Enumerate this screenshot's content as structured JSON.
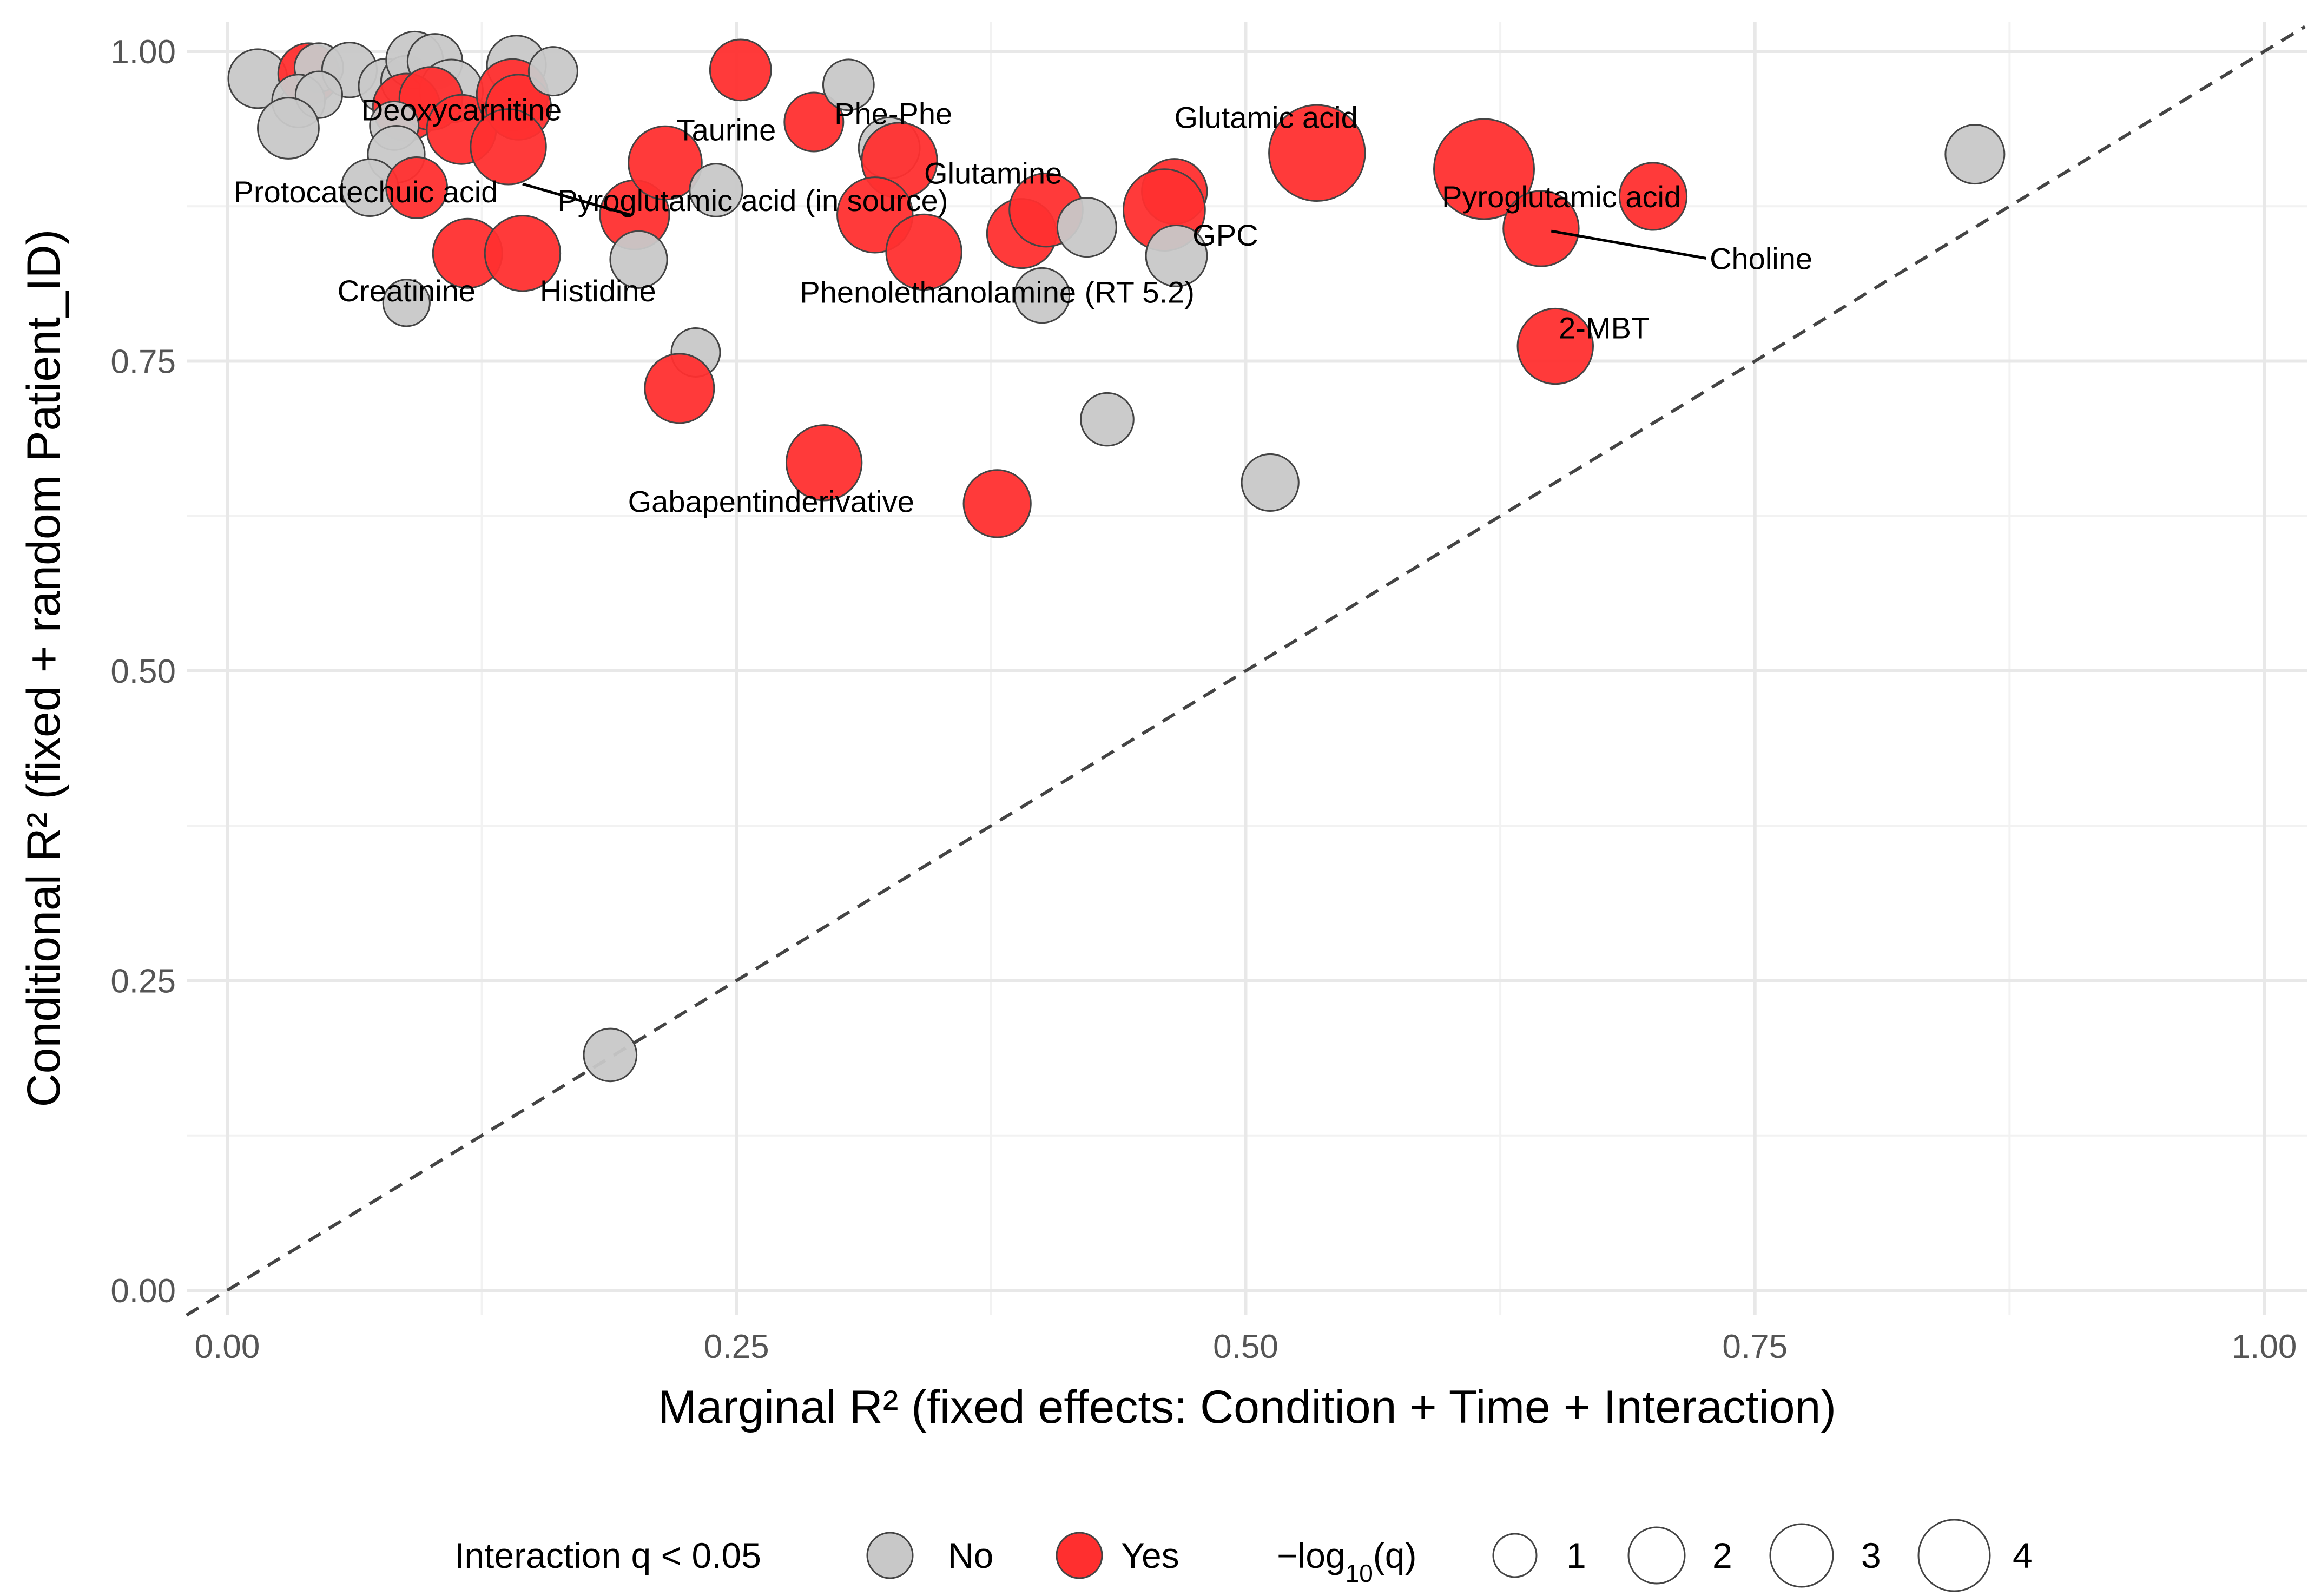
{
  "chart_data": {
    "type": "scatter",
    "title": "",
    "xlabel": "Marginal R² (fixed effects: Condition + Time + Interaction)",
    "ylabel": "Conditional R² (fixed + random Patient_ID)",
    "xlim": [
      -0.02,
      1.02
    ],
    "ylim": [
      -0.02,
      1.02
    ],
    "x_ticks": [
      0.0,
      0.25,
      0.5,
      0.75,
      1.0
    ],
    "x_tick_labels": [
      "0.00",
      "0.25",
      "0.50",
      "0.75",
      "1.00"
    ],
    "y_ticks": [
      0.0,
      0.25,
      0.5,
      0.75,
      1.0
    ],
    "y_tick_labels": [
      "0.00",
      "0.25",
      "0.50",
      "0.75",
      "1.00"
    ],
    "grid": true,
    "reference_line": "y = x (dashed)",
    "colors": {
      "No": "#c8c8c8",
      "Yes": "#ff2f2f",
      "edge": "#444444"
    },
    "legend": {
      "position": "bottom",
      "color_title": "Interaction q < 0.05",
      "color_entries": [
        "No",
        "Yes"
      ],
      "size_title_main": "−log",
      "size_title_sub": "10",
      "size_title_end": "(q)",
      "size_entries": [
        "1",
        "2",
        "3",
        "4"
      ]
    },
    "points": [
      {
        "x": 0.015,
        "y": 0.978,
        "sig": "No",
        "s": 1.5
      },
      {
        "x": 0.04,
        "y": 0.982,
        "sig": "Yes",
        "s": 1.6
      },
      {
        "x": 0.045,
        "y": 0.987,
        "sig": "No",
        "s": 1.0
      },
      {
        "x": 0.06,
        "y": 0.985,
        "sig": "No",
        "s": 1.3
      },
      {
        "x": 0.035,
        "y": 0.96,
        "sig": "No",
        "s": 1.2
      },
      {
        "x": 0.045,
        "y": 0.965,
        "sig": "No",
        "s": 0.9
      },
      {
        "x": 0.03,
        "y": 0.938,
        "sig": "No",
        "s": 1.6
      },
      {
        "x": 0.078,
        "y": 0.972,
        "sig": "No",
        "s": 1.3
      },
      {
        "x": 0.088,
        "y": 0.976,
        "sig": "No",
        "s": 1.1
      },
      {
        "x": 0.092,
        "y": 0.993,
        "sig": "No",
        "s": 1.4
      },
      {
        "x": 0.102,
        "y": 0.992,
        "sig": "No",
        "s": 1.3
      },
      {
        "x": 0.11,
        "y": 0.968,
        "sig": "No",
        "s": 1.7
      },
      {
        "x": 0.088,
        "y": 0.955,
        "sig": "Yes",
        "s": 1.9
      },
      {
        "x": 0.1,
        "y": 0.962,
        "sig": "Yes",
        "s": 1.7
      },
      {
        "x": 0.115,
        "y": 0.937,
        "sig": "Yes",
        "s": 2.0
      },
      {
        "x": 0.142,
        "y": 0.989,
        "sig": "No",
        "s": 1.5
      },
      {
        "x": 0.14,
        "y": 0.965,
        "sig": "Yes",
        "s": 2.1
      },
      {
        "x": 0.143,
        "y": 0.955,
        "sig": "Yes",
        "s": 1.8
      },
      {
        "x": 0.16,
        "y": 0.984,
        "sig": "No",
        "s": 1.0
      },
      {
        "x": 0.138,
        "y": 0.923,
        "sig": "Yes",
        "s": 2.3
      },
      {
        "x": 0.082,
        "y": 0.94,
        "sig": "No",
        "s": 1.0
      },
      {
        "x": 0.083,
        "y": 0.917,
        "sig": "No",
        "s": 1.4
      },
      {
        "x": 0.07,
        "y": 0.89,
        "sig": "No",
        "s": 1.4
      },
      {
        "x": 0.093,
        "y": 0.89,
        "sig": "Yes",
        "s": 1.6
      },
      {
        "x": 0.118,
        "y": 0.837,
        "sig": "Yes",
        "s": 2.0
      },
      {
        "x": 0.145,
        "y": 0.837,
        "sig": "Yes",
        "s": 2.3
      },
      {
        "x": 0.088,
        "y": 0.797,
        "sig": "No",
        "s": 0.9
      },
      {
        "x": 0.2,
        "y": 0.868,
        "sig": "Yes",
        "s": 2.0
      },
      {
        "x": 0.202,
        "y": 0.832,
        "sig": "No",
        "s": 1.4
      },
      {
        "x": 0.215,
        "y": 0.91,
        "sig": "Yes",
        "s": 2.2
      },
      {
        "x": 0.24,
        "y": 0.888,
        "sig": "No",
        "s": 1.2
      },
      {
        "x": 0.252,
        "y": 0.985,
        "sig": "Yes",
        "s": 1.6
      },
      {
        "x": 0.23,
        "y": 0.757,
        "sig": "No",
        "s": 1.0
      },
      {
        "x": 0.222,
        "y": 0.728,
        "sig": "Yes",
        "s": 2.0
      },
      {
        "x": 0.288,
        "y": 0.943,
        "sig": "Yes",
        "s": 1.5
      },
      {
        "x": 0.305,
        "y": 0.973,
        "sig": "No",
        "s": 1.1
      },
      {
        "x": 0.325,
        "y": 0.922,
        "sig": "No",
        "s": 1.6
      },
      {
        "x": 0.33,
        "y": 0.912,
        "sig": "Yes",
        "s": 2.3
      },
      {
        "x": 0.318,
        "y": 0.868,
        "sig": "Yes",
        "s": 2.3
      },
      {
        "x": 0.342,
        "y": 0.838,
        "sig": "Yes",
        "s": 2.3
      },
      {
        "x": 0.293,
        "y": 0.668,
        "sig": "Yes",
        "s": 2.3
      },
      {
        "x": 0.378,
        "y": 0.635,
        "sig": "Yes",
        "s": 1.9
      },
      {
        "x": 0.39,
        "y": 0.853,
        "sig": "Yes",
        "s": 2.0
      },
      {
        "x": 0.402,
        "y": 0.872,
        "sig": "Yes",
        "s": 2.2
      },
      {
        "x": 0.4,
        "y": 0.803,
        "sig": "No",
        "s": 1.3
      },
      {
        "x": 0.422,
        "y": 0.858,
        "sig": "No",
        "s": 1.5
      },
      {
        "x": 0.432,
        "y": 0.703,
        "sig": "No",
        "s": 1.2
      },
      {
        "x": 0.465,
        "y": 0.887,
        "sig": "Yes",
        "s": 1.8
      },
      {
        "x": 0.46,
        "y": 0.872,
        "sig": "Yes",
        "s": 2.6
      },
      {
        "x": 0.466,
        "y": 0.835,
        "sig": "No",
        "s": 1.6
      },
      {
        "x": 0.512,
        "y": 0.652,
        "sig": "No",
        "s": 1.4
      },
      {
        "x": 0.535,
        "y": 0.918,
        "sig": "Yes",
        "s": 3.3
      },
      {
        "x": 0.617,
        "y": 0.905,
        "sig": "Yes",
        "s": 3.5
      },
      {
        "x": 0.645,
        "y": 0.857,
        "sig": "Yes",
        "s": 2.3
      },
      {
        "x": 0.652,
        "y": 0.762,
        "sig": "Yes",
        "s": 2.3
      },
      {
        "x": 0.7,
        "y": 0.883,
        "sig": "Yes",
        "s": 1.9
      },
      {
        "x": 0.858,
        "y": 0.917,
        "sig": "No",
        "s": 1.5
      },
      {
        "x": 0.188,
        "y": 0.19,
        "sig": "No",
        "s": 1.2
      }
    ],
    "annotations": [
      {
        "text": "Deoxycarnitine",
        "x": 0.115,
        "y": 0.953
      },
      {
        "text": "Taurine",
        "x": 0.245,
        "y": 0.937
      },
      {
        "text": "Phe-Phe",
        "x": 0.327,
        "y": 0.95
      },
      {
        "text": "Glutamic acid",
        "x": 0.51,
        "y": 0.947
      },
      {
        "text": "Protocatechuic acid",
        "x": 0.068,
        "y": 0.887
      },
      {
        "text": "Pyroglutamic acid (in source)",
        "x": 0.258,
        "y": 0.88
      },
      {
        "text": "Glutamine",
        "x": 0.376,
        "y": 0.902
      },
      {
        "text": "Pyroglutamic acid",
        "x": 0.655,
        "y": 0.883
      },
      {
        "text": "GPC",
        "x": 0.49,
        "y": 0.852
      },
      {
        "text": "Choline",
        "x": 0.753,
        "y": 0.833
      },
      {
        "text": "Creatinine",
        "x": 0.088,
        "y": 0.807
      },
      {
        "text": "Histidine",
        "x": 0.182,
        "y": 0.807
      },
      {
        "text": "Phenolethanolamine (RT 5.2)",
        "x": 0.378,
        "y": 0.806
      },
      {
        "text": "2-MBT",
        "x": 0.676,
        "y": 0.777
      },
      {
        "text": "Gabapentinderivative",
        "x": 0.267,
        "y": 0.637
      }
    ]
  }
}
